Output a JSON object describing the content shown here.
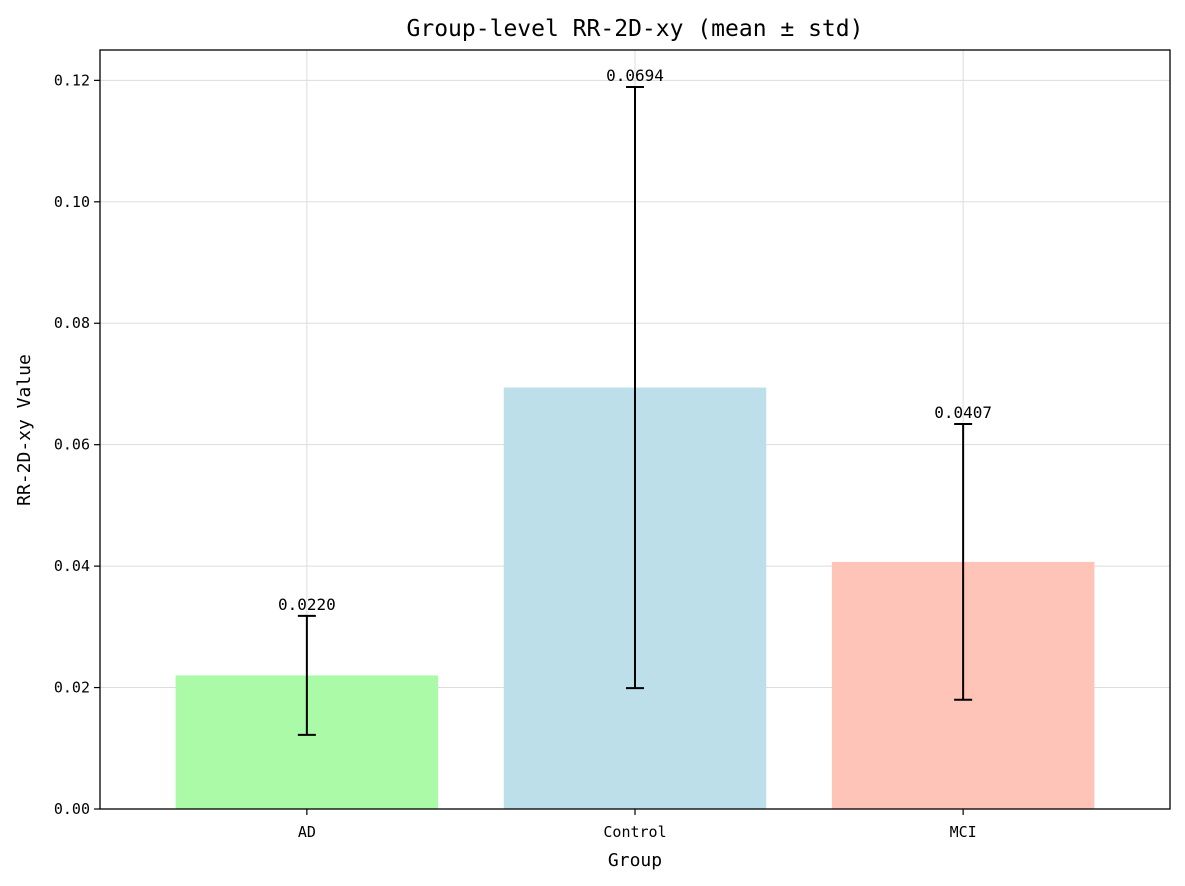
{
  "chart_data": {
    "type": "bar",
    "title": "Group-level RR-2D-xy (mean ± std)",
    "xlabel": "Group",
    "ylabel": "RR-2D-xy Value",
    "categories": [
      "AD",
      "Control",
      "MCI"
    ],
    "values": [
      0.022,
      0.0694,
      0.0407
    ],
    "value_labels": [
      "0.0220",
      "0.0694",
      "0.0407"
    ],
    "errors": [
      0.0098,
      0.0495,
      0.0227
    ],
    "colors": [
      "#aafaa8",
      "#bddfea",
      "#fec4b7"
    ],
    "ylim": [
      0,
      0.125
    ],
    "yticks": [
      0.0,
      0.02,
      0.04,
      0.06,
      0.08,
      0.1,
      0.12
    ],
    "ytick_labels": [
      "0.00",
      "0.02",
      "0.04",
      "0.06",
      "0.08",
      "0.10",
      "0.12"
    ],
    "grid": true,
    "error_bar_color": "#000000"
  }
}
